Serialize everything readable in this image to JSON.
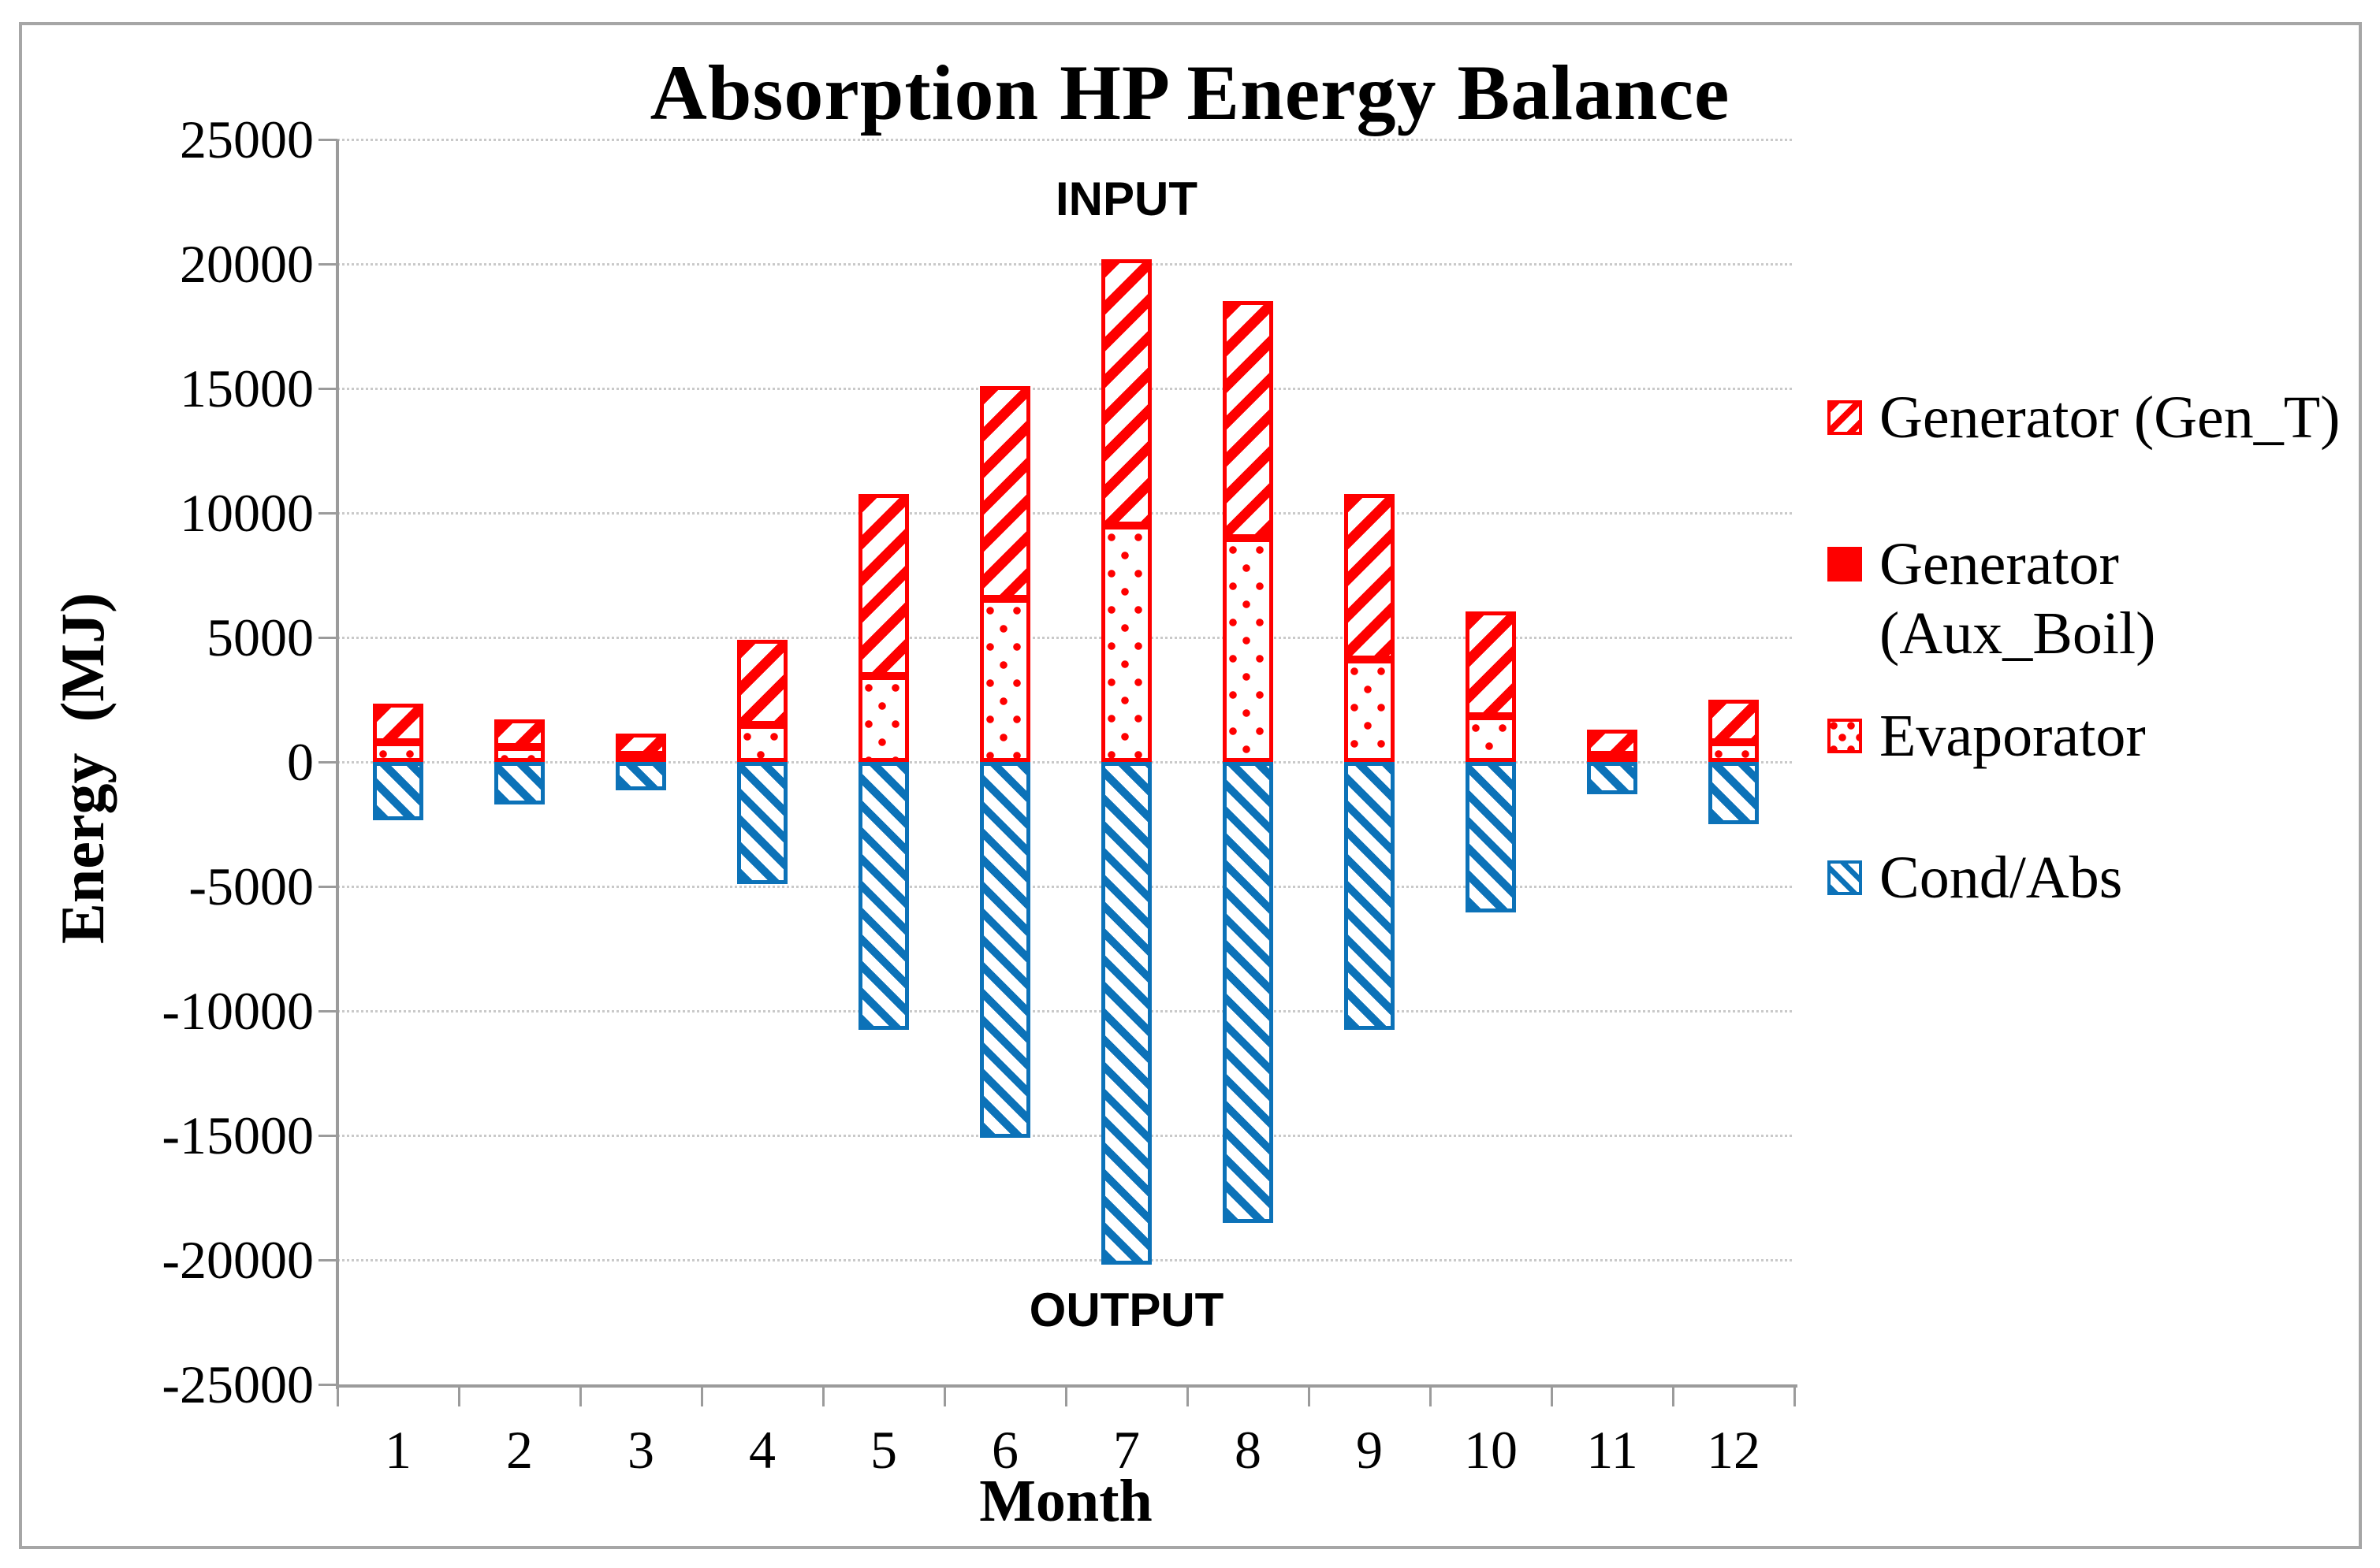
{
  "figure": {
    "border_color": "#a6a6a6",
    "background": "#ffffff"
  },
  "chart_data": {
    "type": "bar",
    "stacked": true,
    "title": "Absorption HP Energy Balance",
    "xlabel": "Month",
    "ylabel": "Energy  (MJ)",
    "ylim": [
      -25000,
      25000
    ],
    "ytick_step": 5000,
    "grid": "horizontal-dotted",
    "legend_position": "right",
    "categories": [
      "1",
      "2",
      "3",
      "4",
      "5",
      "6",
      "7",
      "8",
      "9",
      "10",
      "11",
      "12"
    ],
    "series": [
      {
        "name": "Generator (Gen_T)",
        "key": "gen_t",
        "pattern": "diagonal-up-red-hatch",
        "color": "#fe0000",
        "stack_side": "positive",
        "values": [
          1550,
          1100,
          850,
          3400,
          7300,
          8550,
          10700,
          9500,
          6650,
          4200,
          1000,
          1700
        ]
      },
      {
        "name": "Generator (Aux_Boil)",
        "key": "aux_boil",
        "pattern": "solid-red",
        "color": "#fe0000",
        "stack_side": "positive",
        "values": [
          0,
          0,
          0,
          0,
          0,
          0,
          0,
          0,
          0,
          0,
          0,
          0
        ]
      },
      {
        "name": "Evaporator",
        "key": "evaporator",
        "pattern": "dotted-red",
        "color": "#fe0000",
        "stack_side": "positive",
        "values": [
          800,
          600,
          300,
          1500,
          3450,
          6550,
          9500,
          9000,
          4100,
          1850,
          300,
          800
        ]
      },
      {
        "name": "Cond/Abs",
        "key": "cond_abs",
        "pattern": "diagonal-down-blue-hatch",
        "color": "#0c72b8",
        "stack_side": "negative",
        "values": [
          -2350,
          -1700,
          -1150,
          -4900,
          -10750,
          -15100,
          -20200,
          -18500,
          -10750,
          -6050,
          -1300,
          -2500
        ]
      }
    ],
    "annotations": [
      {
        "id": "input",
        "text": "INPUT"
      },
      {
        "id": "output",
        "text": "OUTPUT"
      }
    ],
    "axis_colors": {
      "axis": "#9b9b9b",
      "gridline": "#c9c9c9",
      "text": "#000000"
    }
  },
  "legend": {
    "items": [
      {
        "label": "Generator (Gen_T)",
        "key": "gen_t"
      },
      {
        "label": "Generator (Aux_Boil)",
        "key": "aux_boil"
      },
      {
        "label": "Evaporator",
        "key": "evaporator"
      },
      {
        "label": "Cond/Abs",
        "key": "cond_abs"
      }
    ]
  }
}
